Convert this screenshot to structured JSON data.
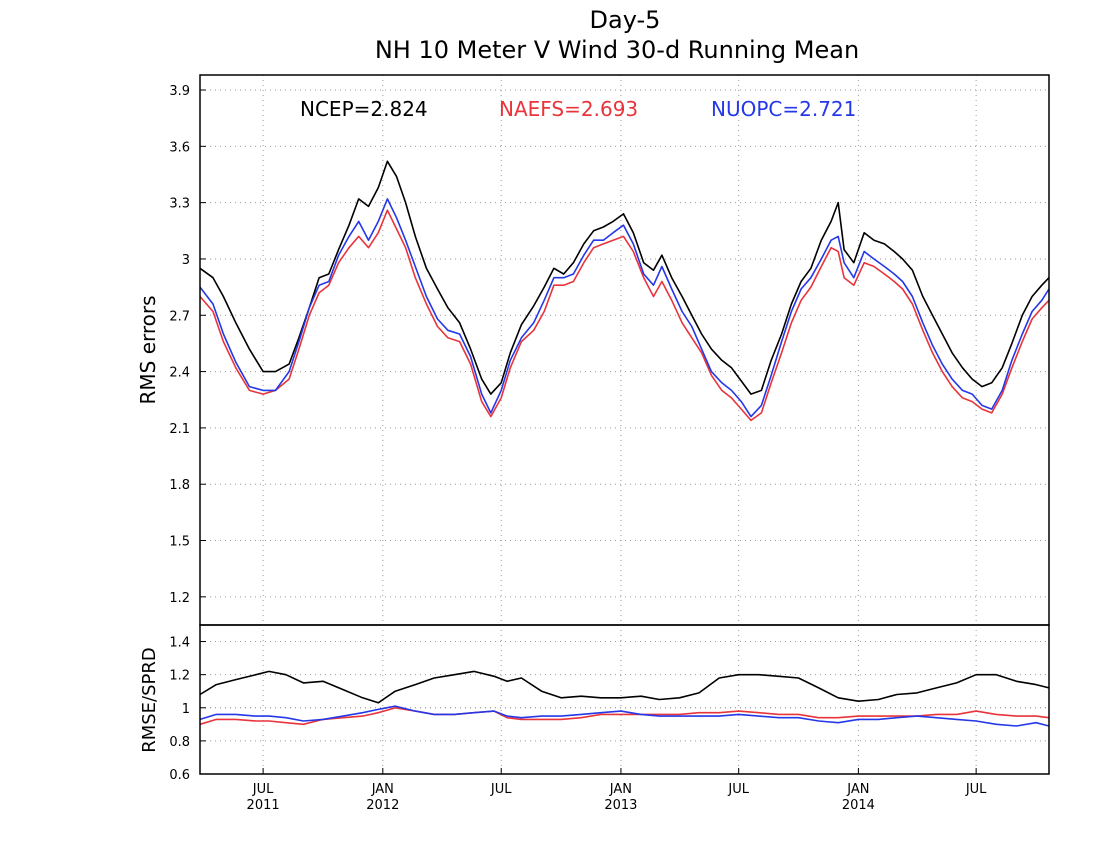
{
  "chart_data": [
    {
      "type": "line",
      "title": "Day-5",
      "subtitle": "NH 10 Meter V Wind 30-d Running Mean",
      "xlabel": "",
      "ylabel": "RMS errors",
      "ylim": [
        1.05,
        3.98
      ],
      "yticks": [
        "1.2",
        "1.5",
        "1.8",
        "2.1",
        "2.4",
        "2.7",
        "3",
        "3.3",
        "3.6",
        "3.9"
      ],
      "x_range": [
        "2011-03-26",
        "2014-10-21"
      ],
      "x_ticks": [
        {
          "date": "2011-07-01",
          "label": "JUL",
          "year": "2011"
        },
        {
          "date": "2012-01-01",
          "label": "JAN",
          "year": "2012"
        },
        {
          "date": "2012-07-01",
          "label": "JUL",
          "year": ""
        },
        {
          "date": "2013-01-01",
          "label": "JAN",
          "year": "2013"
        },
        {
          "date": "2013-07-01",
          "label": "JUL",
          "year": ""
        },
        {
          "date": "2014-01-01",
          "label": "JAN",
          "year": "2014"
        },
        {
          "date": "2014-07-01",
          "label": "JUL",
          "year": ""
        }
      ],
      "grid": true,
      "legend": "top",
      "legend_entries": [
        {
          "text": "NCEP=2.824",
          "color": "#000000"
        },
        {
          "text": "NAEFS=2.693",
          "color": "#e8343a"
        },
        {
          "text": "NUOPC=2.721",
          "color": "#2438e8"
        }
      ],
      "series": [
        {
          "color": "#000000",
          "x": [
            "2011-03-26",
            "2011-04-15",
            "2011-05-01",
            "2011-05-20",
            "2011-06-10",
            "2011-07-01",
            "2011-07-20",
            "2011-08-10",
            "2011-08-25",
            "2011-09-10",
            "2011-09-25",
            "2011-10-10",
            "2011-10-25",
            "2011-11-10",
            "2011-11-25",
            "2011-12-10",
            "2011-12-25",
            "2012-01-08",
            "2012-01-22",
            "2012-02-05",
            "2012-02-20",
            "2012-03-08",
            "2012-03-25",
            "2012-04-10",
            "2012-04-28",
            "2012-05-15",
            "2012-06-01",
            "2012-06-15",
            "2012-07-01",
            "2012-07-15",
            "2012-08-01",
            "2012-08-20",
            "2012-09-05",
            "2012-09-20",
            "2012-10-05",
            "2012-10-20",
            "2012-11-05",
            "2012-11-20",
            "2012-12-05",
            "2012-12-20",
            "2013-01-05",
            "2013-01-20",
            "2013-02-05",
            "2013-02-20",
            "2013-03-05",
            "2013-03-20",
            "2013-04-05",
            "2013-04-20",
            "2013-05-05",
            "2013-05-20",
            "2013-06-05",
            "2013-06-20",
            "2013-07-05",
            "2013-07-20",
            "2013-08-05",
            "2013-08-20",
            "2013-09-05",
            "2013-09-20",
            "2013-10-05",
            "2013-10-20",
            "2013-11-05",
            "2013-11-20",
            "2013-12-01",
            "2013-12-10",
            "2013-12-25",
            "2014-01-10",
            "2014-01-25",
            "2014-02-10",
            "2014-02-25",
            "2014-03-10",
            "2014-03-25",
            "2014-04-10",
            "2014-04-25",
            "2014-05-10",
            "2014-05-25",
            "2014-06-10",
            "2014-06-25",
            "2014-07-10",
            "2014-07-25",
            "2014-08-10",
            "2014-08-25",
            "2014-09-10",
            "2014-09-25",
            "2014-10-10",
            "2014-10-21"
          ],
          "y": [
            2.95,
            2.9,
            2.8,
            2.66,
            2.52,
            2.4,
            2.4,
            2.44,
            2.58,
            2.74,
            2.9,
            2.92,
            3.05,
            3.18,
            3.32,
            3.28,
            3.38,
            3.52,
            3.44,
            3.3,
            3.12,
            2.95,
            2.84,
            2.74,
            2.66,
            2.52,
            2.36,
            2.28,
            2.34,
            2.5,
            2.65,
            2.75,
            2.85,
            2.95,
            2.92,
            2.98,
            3.08,
            3.15,
            3.17,
            3.2,
            3.24,
            3.14,
            2.98,
            2.94,
            3.02,
            2.9,
            2.8,
            2.7,
            2.6,
            2.52,
            2.46,
            2.42,
            2.35,
            2.28,
            2.3,
            2.46,
            2.6,
            2.76,
            2.88,
            2.95,
            3.1,
            3.2,
            3.3,
            3.05,
            2.98,
            3.14,
            3.1,
            3.08,
            3.04,
            3.0,
            2.94,
            2.8,
            2.7,
            2.6,
            2.5,
            2.42,
            2.36,
            2.32,
            2.34,
            2.42,
            2.55,
            2.7,
            2.8,
            2.86,
            2.9
          ]
        },
        {
          "color": "#e8343a",
          "x": [
            "2011-03-26",
            "2011-04-15",
            "2011-05-01",
            "2011-05-20",
            "2011-06-10",
            "2011-07-01",
            "2011-07-20",
            "2011-08-10",
            "2011-08-25",
            "2011-09-10",
            "2011-09-25",
            "2011-10-10",
            "2011-10-25",
            "2011-11-10",
            "2011-11-25",
            "2011-12-10",
            "2011-12-25",
            "2012-01-08",
            "2012-01-22",
            "2012-02-05",
            "2012-02-20",
            "2012-03-08",
            "2012-03-25",
            "2012-04-10",
            "2012-04-28",
            "2012-05-15",
            "2012-06-01",
            "2012-06-15",
            "2012-07-01",
            "2012-07-15",
            "2012-08-01",
            "2012-08-20",
            "2012-09-05",
            "2012-09-20",
            "2012-10-05",
            "2012-10-20",
            "2012-11-05",
            "2012-11-20",
            "2012-12-05",
            "2012-12-20",
            "2013-01-05",
            "2013-01-20",
            "2013-02-05",
            "2013-02-20",
            "2013-03-05",
            "2013-03-20",
            "2013-04-05",
            "2013-04-20",
            "2013-05-05",
            "2013-05-20",
            "2013-06-05",
            "2013-06-20",
            "2013-07-05",
            "2013-07-20",
            "2013-08-05",
            "2013-08-20",
            "2013-09-05",
            "2013-09-20",
            "2013-10-05",
            "2013-10-20",
            "2013-11-05",
            "2013-11-20",
            "2013-12-01",
            "2013-12-10",
            "2013-12-25",
            "2014-01-10",
            "2014-01-25",
            "2014-02-10",
            "2014-02-25",
            "2014-03-10",
            "2014-03-25",
            "2014-04-10",
            "2014-04-25",
            "2014-05-10",
            "2014-05-25",
            "2014-06-10",
            "2014-06-25",
            "2014-07-10",
            "2014-07-25",
            "2014-08-10",
            "2014-08-25",
            "2014-09-10",
            "2014-09-25",
            "2014-10-10",
            "2014-10-21"
          ],
          "y": [
            2.8,
            2.72,
            2.56,
            2.42,
            2.3,
            2.28,
            2.3,
            2.36,
            2.52,
            2.7,
            2.82,
            2.86,
            2.98,
            3.06,
            3.12,
            3.06,
            3.14,
            3.26,
            3.16,
            3.06,
            2.9,
            2.76,
            2.64,
            2.58,
            2.56,
            2.44,
            2.24,
            2.16,
            2.26,
            2.42,
            2.56,
            2.62,
            2.72,
            2.86,
            2.86,
            2.88,
            2.98,
            3.06,
            3.08,
            3.1,
            3.12,
            3.04,
            2.9,
            2.8,
            2.88,
            2.78,
            2.66,
            2.58,
            2.5,
            2.38,
            2.3,
            2.26,
            2.2,
            2.14,
            2.18,
            2.34,
            2.5,
            2.66,
            2.78,
            2.85,
            2.96,
            3.06,
            3.04,
            2.9,
            2.86,
            2.98,
            2.96,
            2.92,
            2.88,
            2.84,
            2.76,
            2.62,
            2.5,
            2.4,
            2.32,
            2.26,
            2.24,
            2.2,
            2.18,
            2.28,
            2.42,
            2.56,
            2.68,
            2.74,
            2.78
          ]
        },
        {
          "color": "#2438e8",
          "x": [
            "2011-03-26",
            "2011-04-15",
            "2011-05-01",
            "2011-05-20",
            "2011-06-10",
            "2011-07-01",
            "2011-07-20",
            "2011-08-10",
            "2011-08-25",
            "2011-09-10",
            "2011-09-25",
            "2011-10-10",
            "2011-10-25",
            "2011-11-10",
            "2011-11-25",
            "2011-12-10",
            "2011-12-25",
            "2012-01-08",
            "2012-01-22",
            "2012-02-05",
            "2012-02-20",
            "2012-03-08",
            "2012-03-25",
            "2012-04-10",
            "2012-04-28",
            "2012-05-15",
            "2012-06-01",
            "2012-06-15",
            "2012-07-01",
            "2012-07-15",
            "2012-08-01",
            "2012-08-20",
            "2012-09-05",
            "2012-09-20",
            "2012-10-05",
            "2012-10-20",
            "2012-11-05",
            "2012-11-20",
            "2012-12-05",
            "2012-12-20",
            "2013-01-05",
            "2013-01-20",
            "2013-02-05",
            "2013-02-20",
            "2013-03-05",
            "2013-03-20",
            "2013-04-05",
            "2013-04-20",
            "2013-05-05",
            "2013-05-20",
            "2013-06-05",
            "2013-06-20",
            "2013-07-05",
            "2013-07-20",
            "2013-08-05",
            "2013-08-20",
            "2013-09-05",
            "2013-09-20",
            "2013-10-05",
            "2013-10-20",
            "2013-11-05",
            "2013-11-20",
            "2013-12-01",
            "2013-12-10",
            "2013-12-25",
            "2014-01-10",
            "2014-01-25",
            "2014-02-10",
            "2014-02-25",
            "2014-03-10",
            "2014-03-25",
            "2014-04-10",
            "2014-04-25",
            "2014-05-10",
            "2014-05-25",
            "2014-06-10",
            "2014-06-25",
            "2014-07-10",
            "2014-07-25",
            "2014-08-10",
            "2014-08-25",
            "2014-09-10",
            "2014-09-25",
            "2014-10-10",
            "2014-10-21"
          ],
          "y": [
            2.85,
            2.76,
            2.6,
            2.45,
            2.32,
            2.3,
            2.3,
            2.4,
            2.56,
            2.74,
            2.86,
            2.88,
            3.02,
            3.12,
            3.2,
            3.1,
            3.2,
            3.32,
            3.22,
            3.1,
            2.96,
            2.8,
            2.68,
            2.62,
            2.6,
            2.48,
            2.28,
            2.18,
            2.3,
            2.46,
            2.58,
            2.66,
            2.78,
            2.9,
            2.9,
            2.92,
            3.02,
            3.1,
            3.1,
            3.14,
            3.18,
            3.08,
            2.92,
            2.86,
            2.96,
            2.84,
            2.72,
            2.64,
            2.52,
            2.4,
            2.34,
            2.3,
            2.24,
            2.16,
            2.22,
            2.38,
            2.56,
            2.72,
            2.84,
            2.9,
            3.0,
            3.1,
            3.12,
            2.98,
            2.9,
            3.04,
            3.0,
            2.96,
            2.92,
            2.88,
            2.8,
            2.66,
            2.54,
            2.44,
            2.36,
            2.3,
            2.28,
            2.22,
            2.2,
            2.3,
            2.46,
            2.6,
            2.72,
            2.78,
            2.84
          ]
        }
      ]
    },
    {
      "type": "line",
      "xlabel": "",
      "ylabel": "RMSE/SPRD",
      "ylim": [
        0.6,
        1.5
      ],
      "yticks": [
        "0.6",
        "0.8",
        "1",
        "1.2",
        "1.4"
      ],
      "x_range": [
        "2011-03-26",
        "2014-10-21"
      ],
      "grid": true,
      "reference_line": 1.0,
      "series": [
        {
          "color": "#000000",
          "x": [
            "2011-03-26",
            "2011-04-20",
            "2011-05-20",
            "2011-06-20",
            "2011-07-10",
            "2011-08-05",
            "2011-09-01",
            "2011-10-01",
            "2011-11-01",
            "2011-12-01",
            "2011-12-25",
            "2012-01-20",
            "2012-02-20",
            "2012-03-20",
            "2012-04-20",
            "2012-05-20",
            "2012-06-20",
            "2012-07-10",
            "2012-08-01",
            "2012-09-01",
            "2012-10-01",
            "2012-11-01",
            "2012-12-01",
            "2013-01-01",
            "2013-02-01",
            "2013-03-01",
            "2013-04-01",
            "2013-05-01",
            "2013-06-01",
            "2013-07-01",
            "2013-08-01",
            "2013-09-01",
            "2013-10-01",
            "2013-11-01",
            "2013-12-01",
            "2014-01-01",
            "2014-02-01",
            "2014-03-01",
            "2014-04-01",
            "2014-05-01",
            "2014-06-01",
            "2014-07-01",
            "2014-08-01",
            "2014-09-01",
            "2014-10-01",
            "2014-10-21"
          ],
          "y": [
            1.08,
            1.14,
            1.17,
            1.2,
            1.22,
            1.2,
            1.15,
            1.16,
            1.11,
            1.06,
            1.03,
            1.1,
            1.14,
            1.18,
            1.2,
            1.22,
            1.19,
            1.16,
            1.18,
            1.1,
            1.06,
            1.07,
            1.06,
            1.06,
            1.07,
            1.05,
            1.06,
            1.09,
            1.18,
            1.2,
            1.2,
            1.19,
            1.18,
            1.12,
            1.06,
            1.04,
            1.05,
            1.08,
            1.09,
            1.12,
            1.15,
            1.2,
            1.2,
            1.16,
            1.14,
            1.12
          ]
        },
        {
          "color": "#e8343a",
          "x": [
            "2011-03-26",
            "2011-04-20",
            "2011-05-20",
            "2011-06-20",
            "2011-07-10",
            "2011-08-05",
            "2011-09-01",
            "2011-10-01",
            "2011-11-01",
            "2011-12-01",
            "2011-12-25",
            "2012-01-20",
            "2012-02-20",
            "2012-03-20",
            "2012-04-20",
            "2012-05-20",
            "2012-06-20",
            "2012-07-10",
            "2012-08-01",
            "2012-09-01",
            "2012-10-01",
            "2012-11-01",
            "2012-12-01",
            "2013-01-01",
            "2013-02-01",
            "2013-03-01",
            "2013-04-01",
            "2013-05-01",
            "2013-06-01",
            "2013-07-01",
            "2013-08-01",
            "2013-09-01",
            "2013-10-01",
            "2013-11-01",
            "2013-12-01",
            "2014-01-01",
            "2014-02-01",
            "2014-03-01",
            "2014-04-01",
            "2014-05-01",
            "2014-06-01",
            "2014-07-01",
            "2014-08-01",
            "2014-09-01",
            "2014-10-01",
            "2014-10-21"
          ],
          "y": [
            0.9,
            0.93,
            0.93,
            0.92,
            0.92,
            0.91,
            0.9,
            0.93,
            0.94,
            0.95,
            0.97,
            1.0,
            0.98,
            0.96,
            0.96,
            0.97,
            0.98,
            0.94,
            0.93,
            0.93,
            0.93,
            0.94,
            0.96,
            0.96,
            0.96,
            0.96,
            0.96,
            0.97,
            0.97,
            0.98,
            0.97,
            0.96,
            0.96,
            0.94,
            0.94,
            0.95,
            0.95,
            0.95,
            0.95,
            0.96,
            0.96,
            0.98,
            0.96,
            0.95,
            0.95,
            0.94
          ]
        },
        {
          "color": "#2438e8",
          "x": [
            "2011-03-26",
            "2011-04-20",
            "2011-05-20",
            "2011-06-20",
            "2011-07-10",
            "2011-08-05",
            "2011-09-01",
            "2011-10-01",
            "2011-11-01",
            "2011-12-01",
            "2011-12-25",
            "2012-01-20",
            "2012-02-20",
            "2012-03-20",
            "2012-04-20",
            "2012-05-20",
            "2012-06-20",
            "2012-07-10",
            "2012-08-01",
            "2012-09-01",
            "2012-10-01",
            "2012-11-01",
            "2012-12-01",
            "2013-01-01",
            "2013-02-01",
            "2013-03-01",
            "2013-04-01",
            "2013-05-01",
            "2013-06-01",
            "2013-07-01",
            "2013-08-01",
            "2013-09-01",
            "2013-10-01",
            "2013-11-01",
            "2013-12-01",
            "2014-01-01",
            "2014-02-01",
            "2014-03-01",
            "2014-04-01",
            "2014-05-01",
            "2014-06-01",
            "2014-07-01",
            "2014-08-01",
            "2014-09-01",
            "2014-10-01",
            "2014-10-21"
          ],
          "y": [
            0.93,
            0.96,
            0.96,
            0.95,
            0.95,
            0.94,
            0.92,
            0.93,
            0.95,
            0.97,
            0.99,
            1.01,
            0.98,
            0.96,
            0.96,
            0.97,
            0.98,
            0.95,
            0.94,
            0.95,
            0.95,
            0.96,
            0.97,
            0.98,
            0.96,
            0.95,
            0.95,
            0.95,
            0.95,
            0.96,
            0.95,
            0.94,
            0.94,
            0.92,
            0.91,
            0.93,
            0.93,
            0.94,
            0.95,
            0.94,
            0.93,
            0.92,
            0.9,
            0.89,
            0.91,
            0.89
          ]
        }
      ]
    }
  ]
}
